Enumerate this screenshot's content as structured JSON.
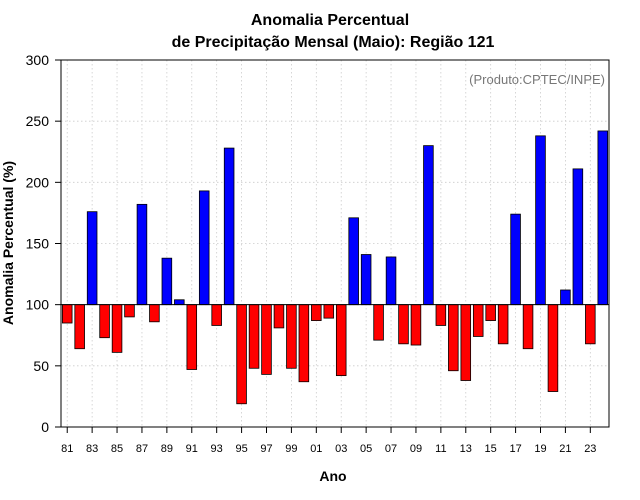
{
  "chart_data": {
    "type": "bar",
    "title_lines": [
      "Anomalia Percentual",
      "de Precipitação Mensal (Maio): Região 121"
    ],
    "xlabel": "Ano",
    "ylabel": "Anomalia Percentual (%)",
    "credit": "(Produto:CPTEC/INPE)",
    "baseline": 100,
    "ylim": [
      0,
      300
    ],
    "yticks": [
      0,
      50,
      100,
      150,
      200,
      250,
      300
    ],
    "grid": true,
    "colors": {
      "above": "#0000ff",
      "below": "#ff0000",
      "edge": "#000000"
    },
    "categories": [
      "81",
      "82",
      "83",
      "84",
      "85",
      "86",
      "87",
      "88",
      "89",
      "90",
      "91",
      "92",
      "93",
      "94",
      "95",
      "96",
      "97",
      "98",
      "99",
      "00",
      "01",
      "02",
      "03",
      "04",
      "05",
      "06",
      "07",
      "08",
      "09",
      "10",
      "11",
      "12",
      "13",
      "14",
      "15",
      "16",
      "17",
      "18",
      "19",
      "20",
      "21",
      "22",
      "23",
      "24"
    ],
    "xtick_labels": [
      "81",
      "83",
      "85",
      "87",
      "89",
      "91",
      "93",
      "95",
      "97",
      "99",
      "01",
      "03",
      "05",
      "07",
      "09",
      "11",
      "13",
      "15",
      "17",
      "19",
      "21",
      "23"
    ],
    "values": [
      85,
      64,
      176,
      73,
      61,
      90,
      182,
      86,
      138,
      104,
      47,
      193,
      83,
      228,
      19,
      48,
      43,
      81,
      48,
      37,
      87,
      89,
      42,
      171,
      141,
      71,
      139,
      68,
      67,
      230,
      83,
      46,
      38,
      74,
      87,
      68,
      174,
      64,
      238,
      29,
      112,
      211,
      68,
      242
    ]
  }
}
